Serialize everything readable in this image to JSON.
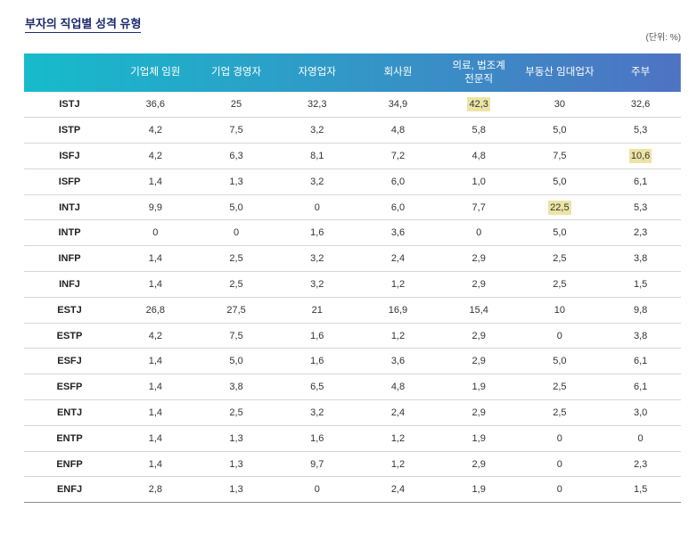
{
  "colors": {
    "title": "#1c2b6e",
    "header_gradient_start": "#16bbcb",
    "header_gradient_end": "#4e73c3",
    "highlight": "#ece4a4",
    "row_line": "#d7d7d7",
    "bottom_line": "#8c8c8c"
  },
  "chart_data": {
    "type": "table",
    "title": "부자의 직업별 성격 유형",
    "unit": "(단위: %)",
    "columns": [
      "기업체 임원",
      "기업 경영자",
      "자영업자",
      "회사원",
      "의료, 법조계\n전문직",
      "부동산 임대업자",
      "주부"
    ],
    "rows": [
      {
        "label": "ISTJ",
        "values": [
          "36,6",
          "25",
          "32,3",
          "34,9",
          "42,3",
          "30",
          "32,6"
        ],
        "highlight": [
          4
        ]
      },
      {
        "label": "ISTP",
        "values": [
          "4,2",
          "7,5",
          "3,2",
          "4,8",
          "5,8",
          "5,0",
          "5,3"
        ],
        "highlight": []
      },
      {
        "label": "ISFJ",
        "values": [
          "4,2",
          "6,3",
          "8,1",
          "7,2",
          "4,8",
          "7,5",
          "10,6"
        ],
        "highlight": [
          6
        ]
      },
      {
        "label": "ISFP",
        "values": [
          "1,4",
          "1,3",
          "3,2",
          "6,0",
          "1,0",
          "5,0",
          "6,1"
        ],
        "highlight": []
      },
      {
        "label": "INTJ",
        "values": [
          "9,9",
          "5,0",
          "0",
          "6,0",
          "7,7",
          "22,5",
          "5,3"
        ],
        "highlight": [
          5
        ]
      },
      {
        "label": "INTP",
        "values": [
          "0",
          "0",
          "1,6",
          "3,6",
          "0",
          "5,0",
          "2,3"
        ],
        "highlight": []
      },
      {
        "label": "INFP",
        "values": [
          "1,4",
          "2,5",
          "3,2",
          "2,4",
          "2,9",
          "2,5",
          "3,8"
        ],
        "highlight": []
      },
      {
        "label": "INFJ",
        "values": [
          "1,4",
          "2,5",
          "3,2",
          "1,2",
          "2,9",
          "2,5",
          "1,5"
        ],
        "highlight": []
      },
      {
        "label": "ESTJ",
        "values": [
          "26,8",
          "27,5",
          "21",
          "16,9",
          "15,4",
          "10",
          "9,8"
        ],
        "highlight": []
      },
      {
        "label": "ESTP",
        "values": [
          "4,2",
          "7,5",
          "1,6",
          "1,2",
          "2,9",
          "0",
          "3,8"
        ],
        "highlight": []
      },
      {
        "label": "ESFJ",
        "values": [
          "1,4",
          "5,0",
          "1,6",
          "3,6",
          "2,9",
          "5,0",
          "6,1"
        ],
        "highlight": []
      },
      {
        "label": "ESFP",
        "values": [
          "1,4",
          "3,8",
          "6,5",
          "4,8",
          "1,9",
          "2,5",
          "6,1"
        ],
        "highlight": []
      },
      {
        "label": "ENTJ",
        "values": [
          "1,4",
          "2,5",
          "3,2",
          "2,4",
          "2,9",
          "2,5",
          "3,0"
        ],
        "highlight": []
      },
      {
        "label": "ENTP",
        "values": [
          "1,4",
          "1,3",
          "1,6",
          "1,2",
          "1,9",
          "0",
          "0"
        ],
        "highlight": []
      },
      {
        "label": "ENFP",
        "values": [
          "1,4",
          "1,3",
          "9,7",
          "1,2",
          "2,9",
          "0",
          "2,3"
        ],
        "highlight": []
      },
      {
        "label": "ENFJ",
        "values": [
          "2,8",
          "1,3",
          "0",
          "2,4",
          "1,9",
          "0",
          "1,5"
        ],
        "highlight": []
      }
    ]
  }
}
